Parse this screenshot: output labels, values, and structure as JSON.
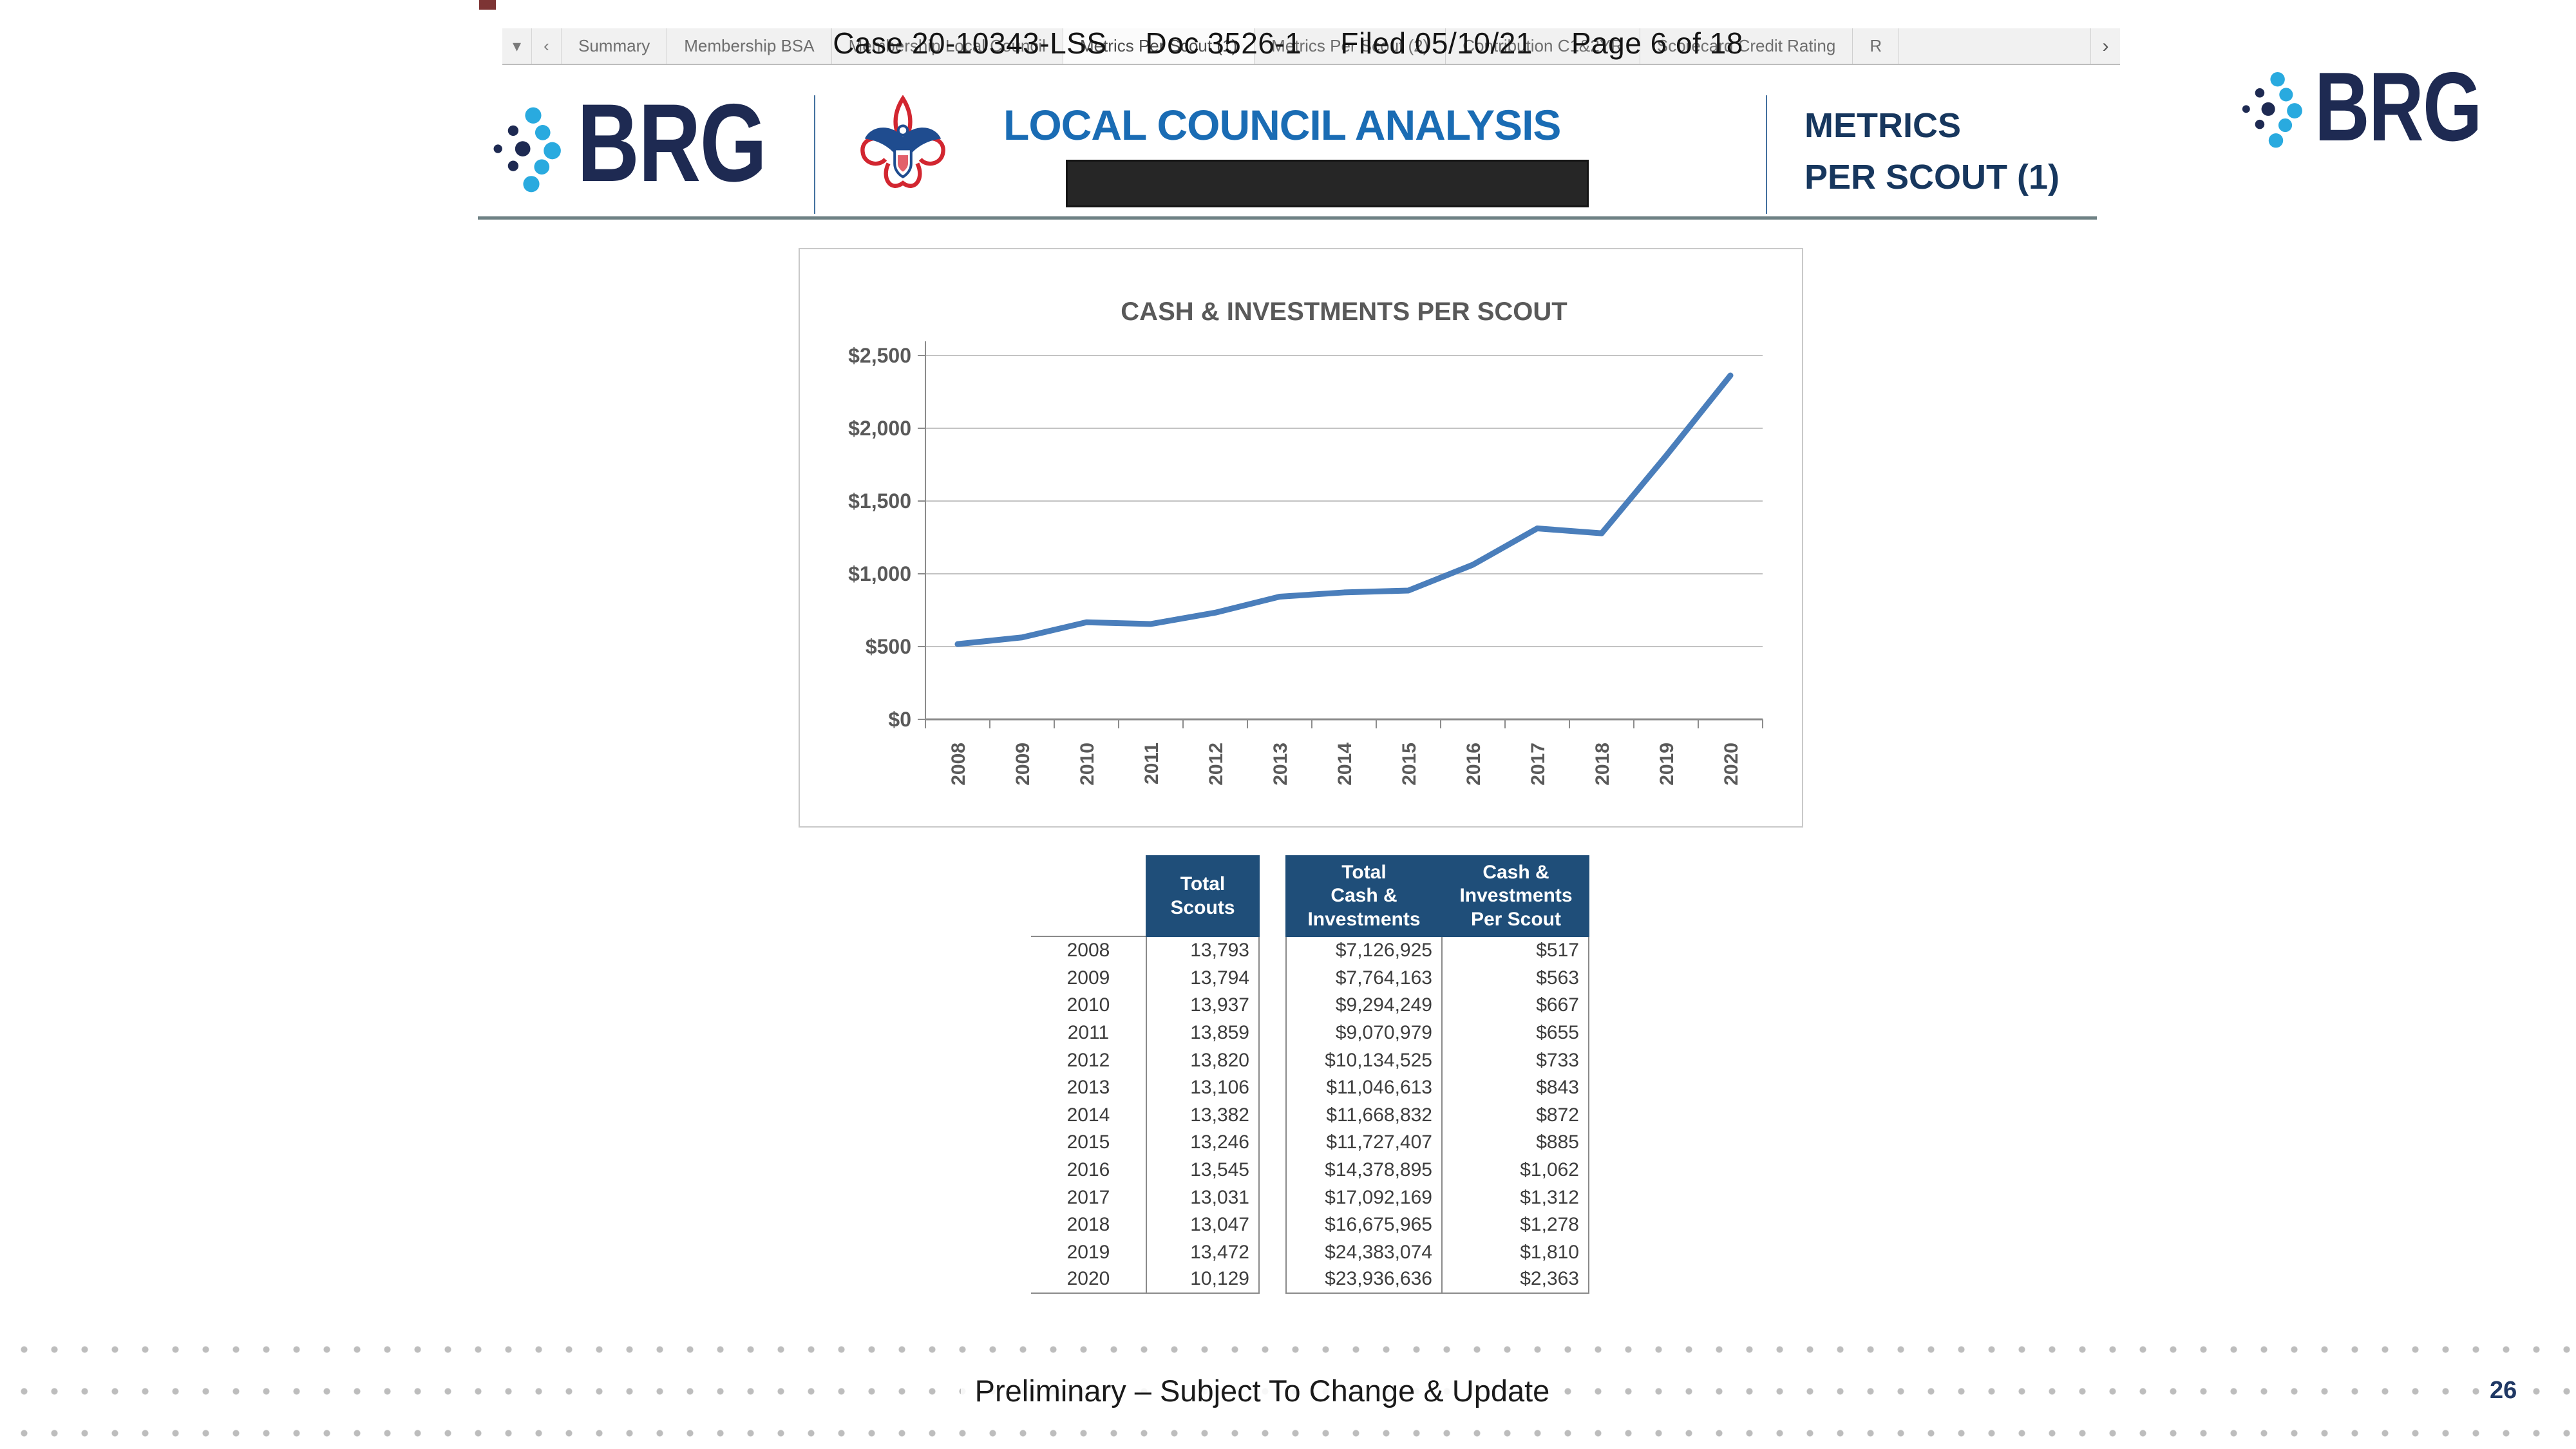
{
  "stamp": {
    "case": "Case 20-10343-LSS",
    "doc": "Doc 3526-1",
    "filed": "Filed 05/10/21",
    "page": "Page 6 of 18"
  },
  "tab_bar": {
    "dropdown_icon": "▾",
    "back_icon": "‹",
    "forward_icon": "›",
    "active_tab": "Metrics Per Scout (1)",
    "tabs": [
      "Summary",
      "Membership BSA",
      "Membership Local Council",
      "Metrics Per Scout (1)",
      "Metrics Per Scout (2)",
      "Contribution C1&2YR",
      "Scorecard Credit Rating",
      "R"
    ]
  },
  "header": {
    "brg_logo": "BRG",
    "title": "LOCAL COUNCIL ANALYSIS",
    "section_line1": "METRICS",
    "section_line2": "PER SCOUT (1)"
  },
  "corner_logo": "BRG",
  "chart_data": {
    "type": "line",
    "title": "CASH & INVESTMENTS PER SCOUT",
    "categories": [
      "2008",
      "2009",
      "2010",
      "2011",
      "2012",
      "2013",
      "2014",
      "2015",
      "2016",
      "2017",
      "2018",
      "2019",
      "2020"
    ],
    "series": [
      {
        "name": "Cash & Investments Per Scout",
        "values": [
          517,
          563,
          667,
          655,
          733,
          843,
          872,
          885,
          1062,
          1312,
          1278,
          1810,
          2363
        ]
      }
    ],
    "ylim": [
      0,
      2500
    ],
    "ytick_interval": 500,
    "ytick_labels": [
      "$0",
      "$500",
      "$1,000",
      "$1,500",
      "$2,000",
      "$2,500"
    ],
    "grid": true,
    "legend": "none",
    "line_color": "#4a7ebb"
  },
  "table": {
    "headers": {
      "year": "",
      "scouts": "Total\nScouts",
      "cash": "Total\nCash &\nInvestments",
      "per_scout": "Cash &\nInvestments\nPer Scout"
    },
    "rows": [
      {
        "year": "2008",
        "scouts": "13,793",
        "cash": "$7,126,925",
        "per_scout": "$517"
      },
      {
        "year": "2009",
        "scouts": "13,794",
        "cash": "$7,764,163",
        "per_scout": "$563"
      },
      {
        "year": "2010",
        "scouts": "13,937",
        "cash": "$9,294,249",
        "per_scout": "$667"
      },
      {
        "year": "2011",
        "scouts": "13,859",
        "cash": "$9,070,979",
        "per_scout": "$655"
      },
      {
        "year": "2012",
        "scouts": "13,820",
        "cash": "$10,134,525",
        "per_scout": "$733"
      },
      {
        "year": "2013",
        "scouts": "13,106",
        "cash": "$11,046,613",
        "per_scout": "$843"
      },
      {
        "year": "2014",
        "scouts": "13,382",
        "cash": "$11,668,832",
        "per_scout": "$872"
      },
      {
        "year": "2015",
        "scouts": "13,246",
        "cash": "$11,727,407",
        "per_scout": "$885"
      },
      {
        "year": "2016",
        "scouts": "13,545",
        "cash": "$14,378,895",
        "per_scout": "$1,062"
      },
      {
        "year": "2017",
        "scouts": "13,031",
        "cash": "$17,092,169",
        "per_scout": "$1,312"
      },
      {
        "year": "2018",
        "scouts": "13,047",
        "cash": "$16,675,965",
        "per_scout": "$1,278"
      },
      {
        "year": "2019",
        "scouts": "13,472",
        "cash": "$24,383,074",
        "per_scout": "$1,810"
      },
      {
        "year": "2020",
        "scouts": "10,129",
        "cash": "$23,936,636",
        "per_scout": "$2,363"
      }
    ]
  },
  "footer": {
    "disclaimer": "Preliminary – Subject To Change & Update",
    "page_number": "26"
  },
  "colors": {
    "brg_navy": "#1e2a52",
    "brg_dot_blue": "#29aadf",
    "title_blue": "#1a6cb4",
    "section_navy": "#17375e",
    "table_header_navy": "#1f4e79",
    "chart_line": "#4a7ebb",
    "bsa_red": "#d22630",
    "bsa_blue": "#1f4c8f"
  }
}
